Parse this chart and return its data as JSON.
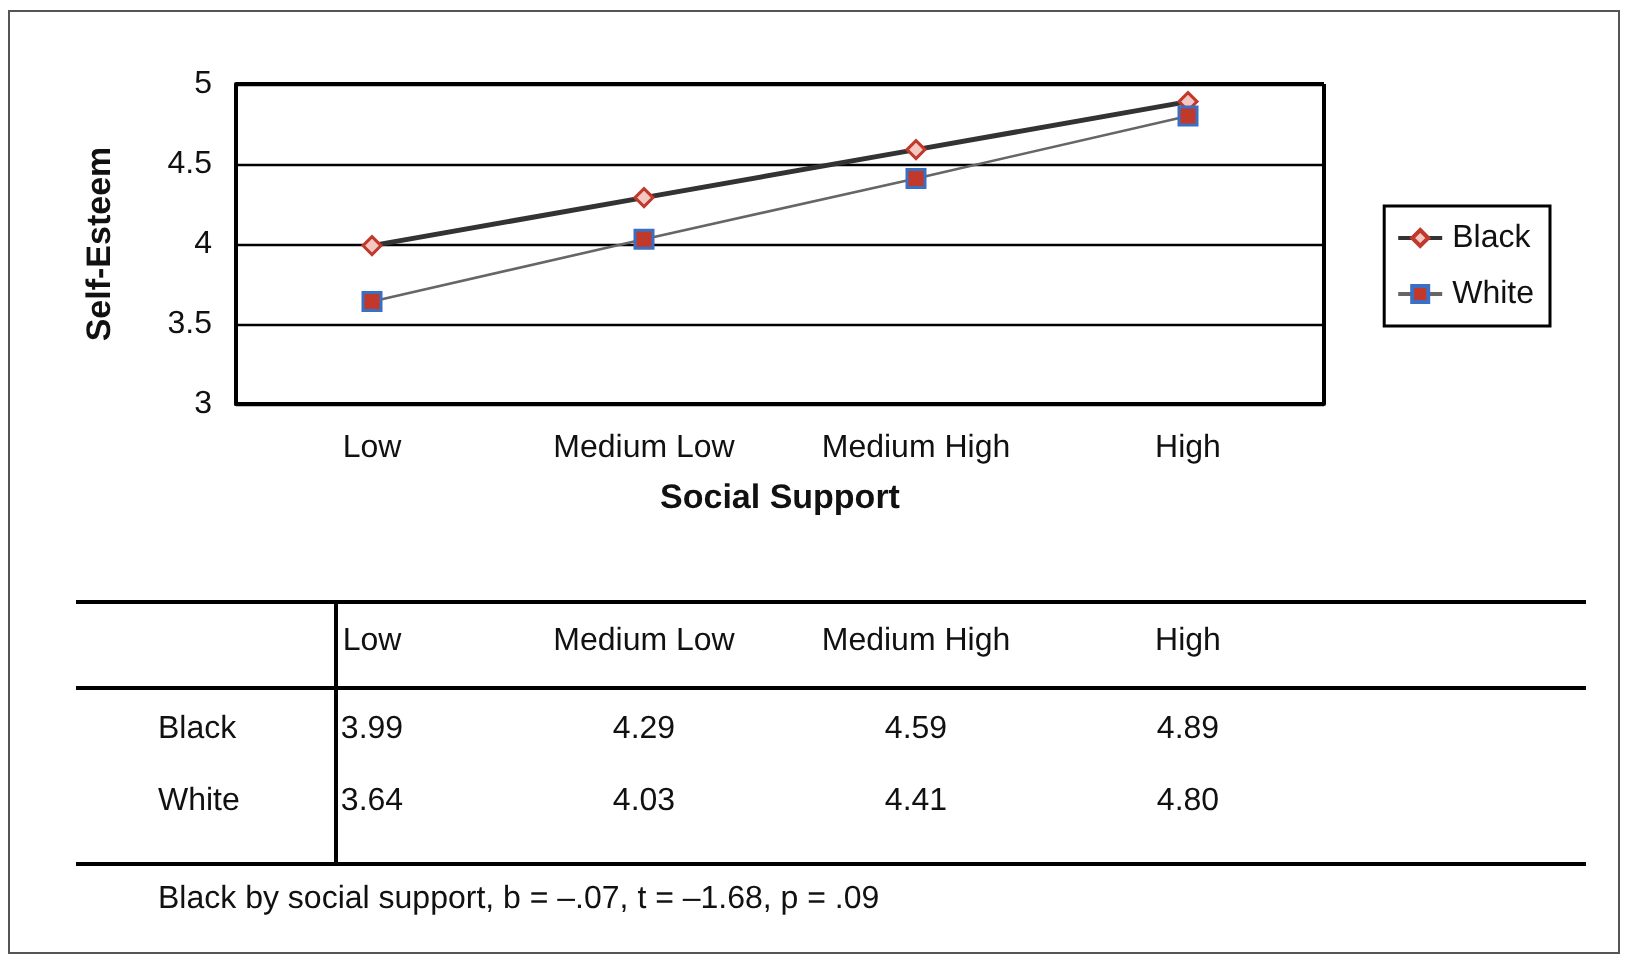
{
  "chart_data": {
    "type": "line",
    "xlabel": "Social Support",
    "ylabel": "Self-Esteem",
    "categories": [
      "Low",
      "Medium Low",
      "Medium High",
      "High"
    ],
    "series": [
      {
        "name": "Black",
        "color": "#333333",
        "marker": "diamond",
        "values": [
          3.99,
          4.29,
          4.59,
          4.89
        ],
        "value_labels": [
          "3.99",
          "4.29",
          "4.59",
          "4.89"
        ]
      },
      {
        "name": "White",
        "color": "#666666",
        "marker": "square",
        "values": [
          3.64,
          4.03,
          4.41,
          4.8
        ],
        "value_labels": [
          "3.64",
          "4.03",
          "4.41",
          "4.80"
        ]
      }
    ],
    "ylim": [
      3,
      5
    ],
    "yticks": [
      3,
      3.5,
      4,
      4.5,
      5
    ],
    "grid": "y",
    "legend": "right",
    "annotations": [
      "Black by social support, b = –.07, t = –1.68, p = .09"
    ]
  }
}
